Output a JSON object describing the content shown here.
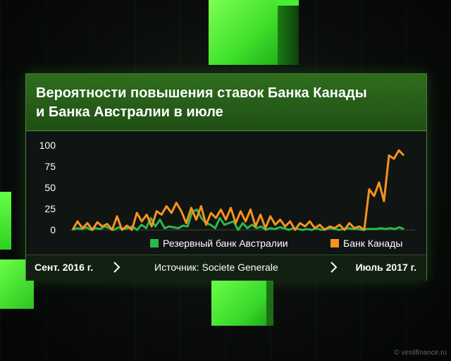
{
  "header": {
    "title_line1": "Вероятности повышения ставок Банка Канады",
    "title_line2": "и Банка Австралии в июле"
  },
  "footer": {
    "start_label": "Сент. 2016 г.",
    "source_label": "Источник: Societe Generale",
    "end_label": "Июль 2017 г."
  },
  "watermark": "© vestifinance.ru",
  "colors": {
    "rba": "#2db84a",
    "boc": "#f7931e",
    "accent_green": "#4cff36"
  },
  "chart_data": {
    "type": "line",
    "title": "Вероятности повышения ставок Банка Канады и Банка Австралии в июле",
    "xlabel": "",
    "ylabel": "",
    "y_ticks": [
      "100",
      "75",
      "50",
      "25",
      "0"
    ],
    "ylim": [
      0,
      100
    ],
    "x_range": [
      "Сент. 2016 г.",
      "Июль 2017 г."
    ],
    "grid": false,
    "legend_position": "bottom-right",
    "series": [
      {
        "name": "Резервный банк Австралии",
        "color": "#2db84a",
        "values": [
          0,
          2,
          1,
          3,
          0,
          2,
          1,
          4,
          2,
          0,
          3,
          1,
          2,
          4,
          0,
          6,
          2,
          14,
          4,
          12,
          2,
          4,
          3,
          2,
          5,
          4,
          21,
          24,
          14,
          8,
          6,
          2,
          14,
          6,
          8,
          10,
          0,
          8,
          2,
          6,
          2,
          4,
          0,
          2,
          1,
          3,
          2,
          0,
          2,
          1,
          0,
          1,
          0,
          2,
          0,
          1,
          2,
          1,
          0,
          1,
          2,
          1,
          1,
          0,
          1,
          1,
          1,
          2,
          1,
          2,
          1,
          3,
          1
        ]
      },
      {
        "name": "Банк Канады",
        "color": "#f7931e",
        "values": [
          0,
          10,
          2,
          8,
          0,
          9,
          4,
          7,
          0,
          16,
          0,
          5,
          0,
          20,
          10,
          18,
          4,
          22,
          18,
          28,
          20,
          32,
          22,
          8,
          26,
          12,
          28,
          6,
          20,
          14,
          24,
          12,
          26,
          8,
          22,
          10,
          24,
          4,
          18,
          2,
          16,
          6,
          12,
          4,
          10,
          0,
          8,
          4,
          10,
          2,
          6,
          0,
          4,
          2,
          6,
          0,
          8,
          2,
          4,
          0,
          48,
          40,
          56,
          34,
          88,
          84,
          94,
          88
        ]
      }
    ]
  }
}
